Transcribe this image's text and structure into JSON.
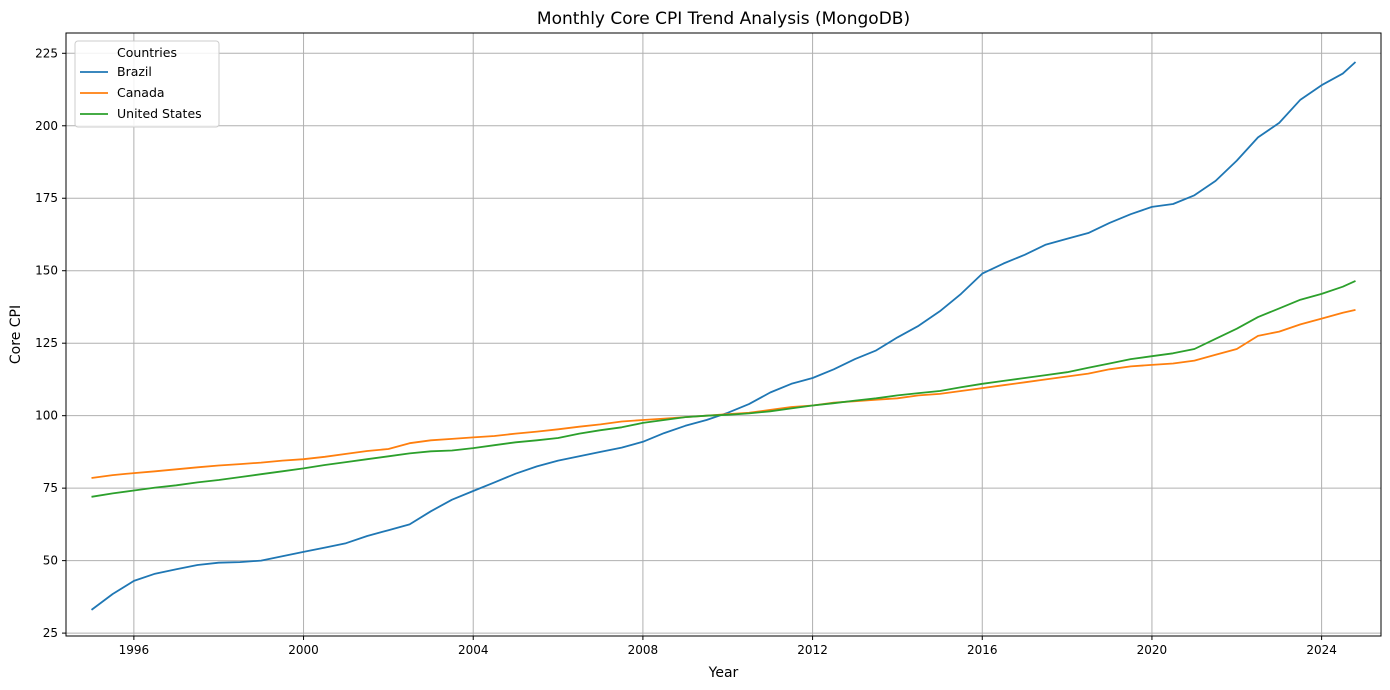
{
  "chart_data": {
    "type": "line",
    "title": "Monthly Core CPI Trend Analysis (MongoDB)",
    "xlabel": "Year",
    "ylabel": "Core CPI",
    "xlim": [
      1994.4,
      2025.4
    ],
    "ylim": [
      24,
      232
    ],
    "x_ticks": [
      1996,
      2000,
      2004,
      2008,
      2012,
      2016,
      2020,
      2024
    ],
    "y_ticks": [
      25,
      50,
      75,
      100,
      125,
      150,
      175,
      200,
      225
    ],
    "grid": true,
    "legend": {
      "title": "Countries",
      "placement": "top-left"
    },
    "x": [
      1995.0,
      1995.5,
      1996.0,
      1996.5,
      1997.0,
      1997.5,
      1998.0,
      1998.5,
      1999.0,
      1999.5,
      2000.0,
      2000.5,
      2001.0,
      2001.5,
      2002.0,
      2002.5,
      2003.0,
      2003.5,
      2004.0,
      2004.5,
      2005.0,
      2005.5,
      2006.0,
      2006.5,
      2007.0,
      2007.5,
      2008.0,
      2008.5,
      2009.0,
      2009.5,
      2010.0,
      2010.5,
      2011.0,
      2011.5,
      2012.0,
      2012.5,
      2013.0,
      2013.5,
      2014.0,
      2014.5,
      2015.0,
      2015.5,
      2016.0,
      2016.5,
      2017.0,
      2017.5,
      2018.0,
      2018.5,
      2019.0,
      2019.5,
      2020.0,
      2020.5,
      2021.0,
      2021.5,
      2022.0,
      2022.5,
      2023.0,
      2023.5,
      2024.0,
      2024.5,
      2024.8
    ],
    "series": [
      {
        "name": "Brazil",
        "color": "#1f77b4",
        "values": [
          33,
          38.5,
          43,
          45.5,
          47,
          48.5,
          49.3,
          49.5,
          50,
          51.5,
          53,
          54.5,
          56,
          58.5,
          60.5,
          62.5,
          67,
          71,
          74,
          77,
          80,
          82.5,
          84.5,
          86,
          87.5,
          89,
          91,
          94,
          96.5,
          98.5,
          101,
          104,
          108,
          111,
          113,
          116,
          119.5,
          122.5,
          127,
          131,
          136,
          142,
          149,
          152.5,
          155.5,
          159,
          161,
          163,
          166.5,
          169.5,
          172,
          173,
          176,
          181,
          188,
          196,
          201,
          209,
          214,
          218,
          222
        ]
      },
      {
        "name": "Canada",
        "color": "#ff7f0e",
        "values": [
          78.5,
          79.5,
          80.2,
          80.8,
          81.5,
          82.2,
          82.8,
          83.3,
          83.8,
          84.5,
          85,
          85.8,
          86.8,
          87.8,
          88.5,
          90.5,
          91.5,
          92,
          92.5,
          93,
          93.8,
          94.5,
          95.3,
          96.2,
          97,
          98,
          98.5,
          99,
          99.5,
          100,
          100.5,
          101,
          102,
          103,
          103.5,
          104.5,
          105,
          105.5,
          106,
          107,
          107.5,
          108.5,
          109.5,
          110.5,
          111.5,
          112.5,
          113.5,
          114.5,
          116,
          117,
          117.5,
          118,
          119,
          121,
          123,
          127.5,
          129,
          131.5,
          133.5,
          135.5,
          136.5
        ]
      },
      {
        "name": "United States",
        "color": "#2ca02c",
        "values": [
          72,
          73.2,
          74.2,
          75.2,
          76,
          77,
          77.8,
          78.8,
          79.8,
          80.8,
          81.8,
          83,
          84,
          85,
          86,
          87,
          87.7,
          88,
          88.8,
          89.8,
          90.8,
          91.5,
          92.3,
          93.8,
          95,
          96,
          97.5,
          98.5,
          99.5,
          100,
          100.3,
          100.8,
          101.5,
          102.5,
          103.5,
          104.3,
          105.2,
          106,
          107,
          107.8,
          108.5,
          109.8,
          111,
          112,
          113,
          114,
          115,
          116.5,
          118,
          119.5,
          120.5,
          121.5,
          123,
          126.5,
          130,
          134,
          137,
          140,
          142,
          144.5,
          146.5
        ]
      }
    ]
  }
}
